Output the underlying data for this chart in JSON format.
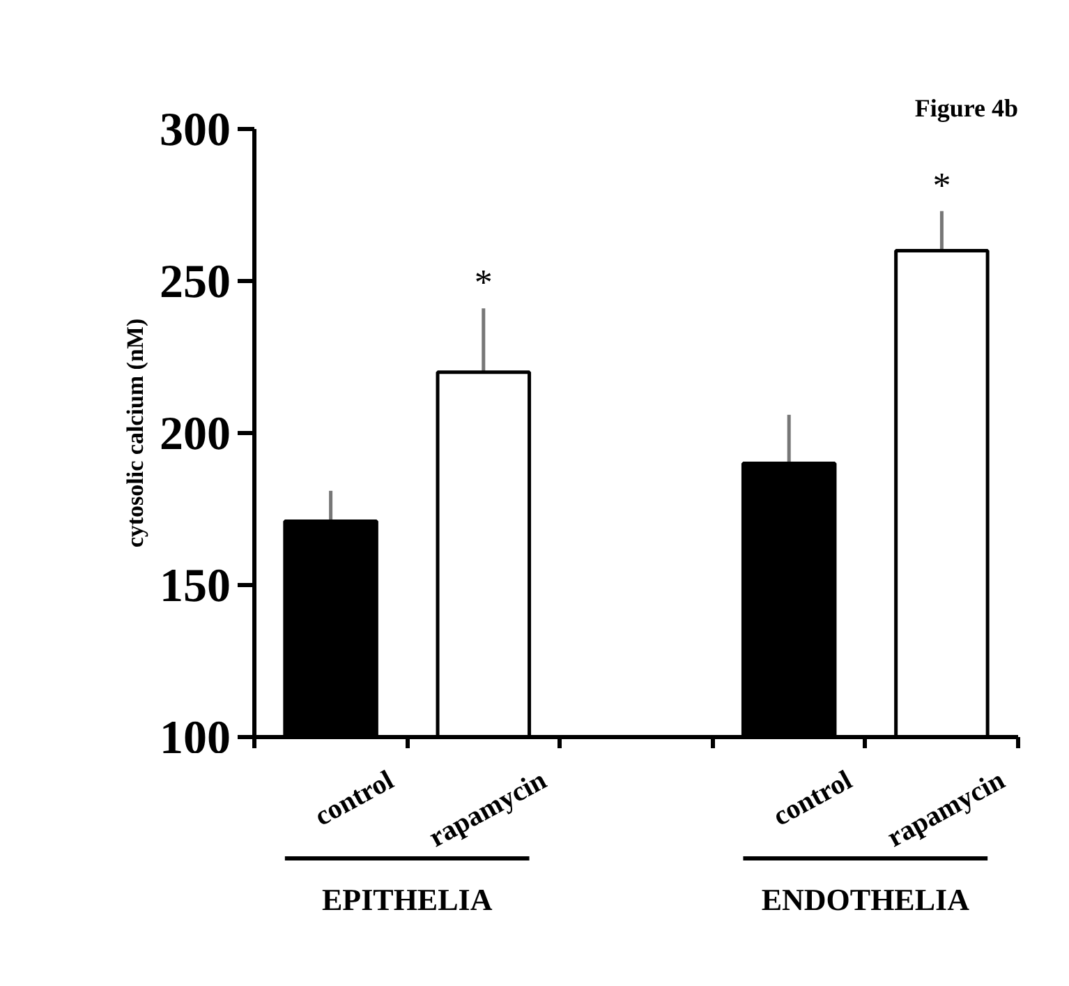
{
  "chart_data": {
    "type": "bar",
    "title": "Figure 4b",
    "ylabel": "cytosolic calcium (nM)",
    "categories": [
      "control",
      "rapamycin",
      null,
      "control",
      "rapamycin"
    ],
    "values": [
      171,
      220,
      null,
      190,
      260
    ],
    "colors": [
      "#000000",
      "#ffffff",
      null,
      "#000000",
      "#ffffff"
    ],
    "errors": [
      [
        171,
        181
      ],
      [
        220,
        241
      ],
      null,
      [
        190,
        206
      ],
      [
        260,
        273
      ]
    ],
    "value_labels": [
      null,
      "*",
      null,
      null,
      "*"
    ],
    "annotations": [
      "EPITHELIA",
      "ENDOTHELIA"
    ],
    "ylim": [
      100,
      300
    ],
    "yticks": [
      100,
      150,
      200,
      250,
      300
    ],
    "grid": false
  }
}
